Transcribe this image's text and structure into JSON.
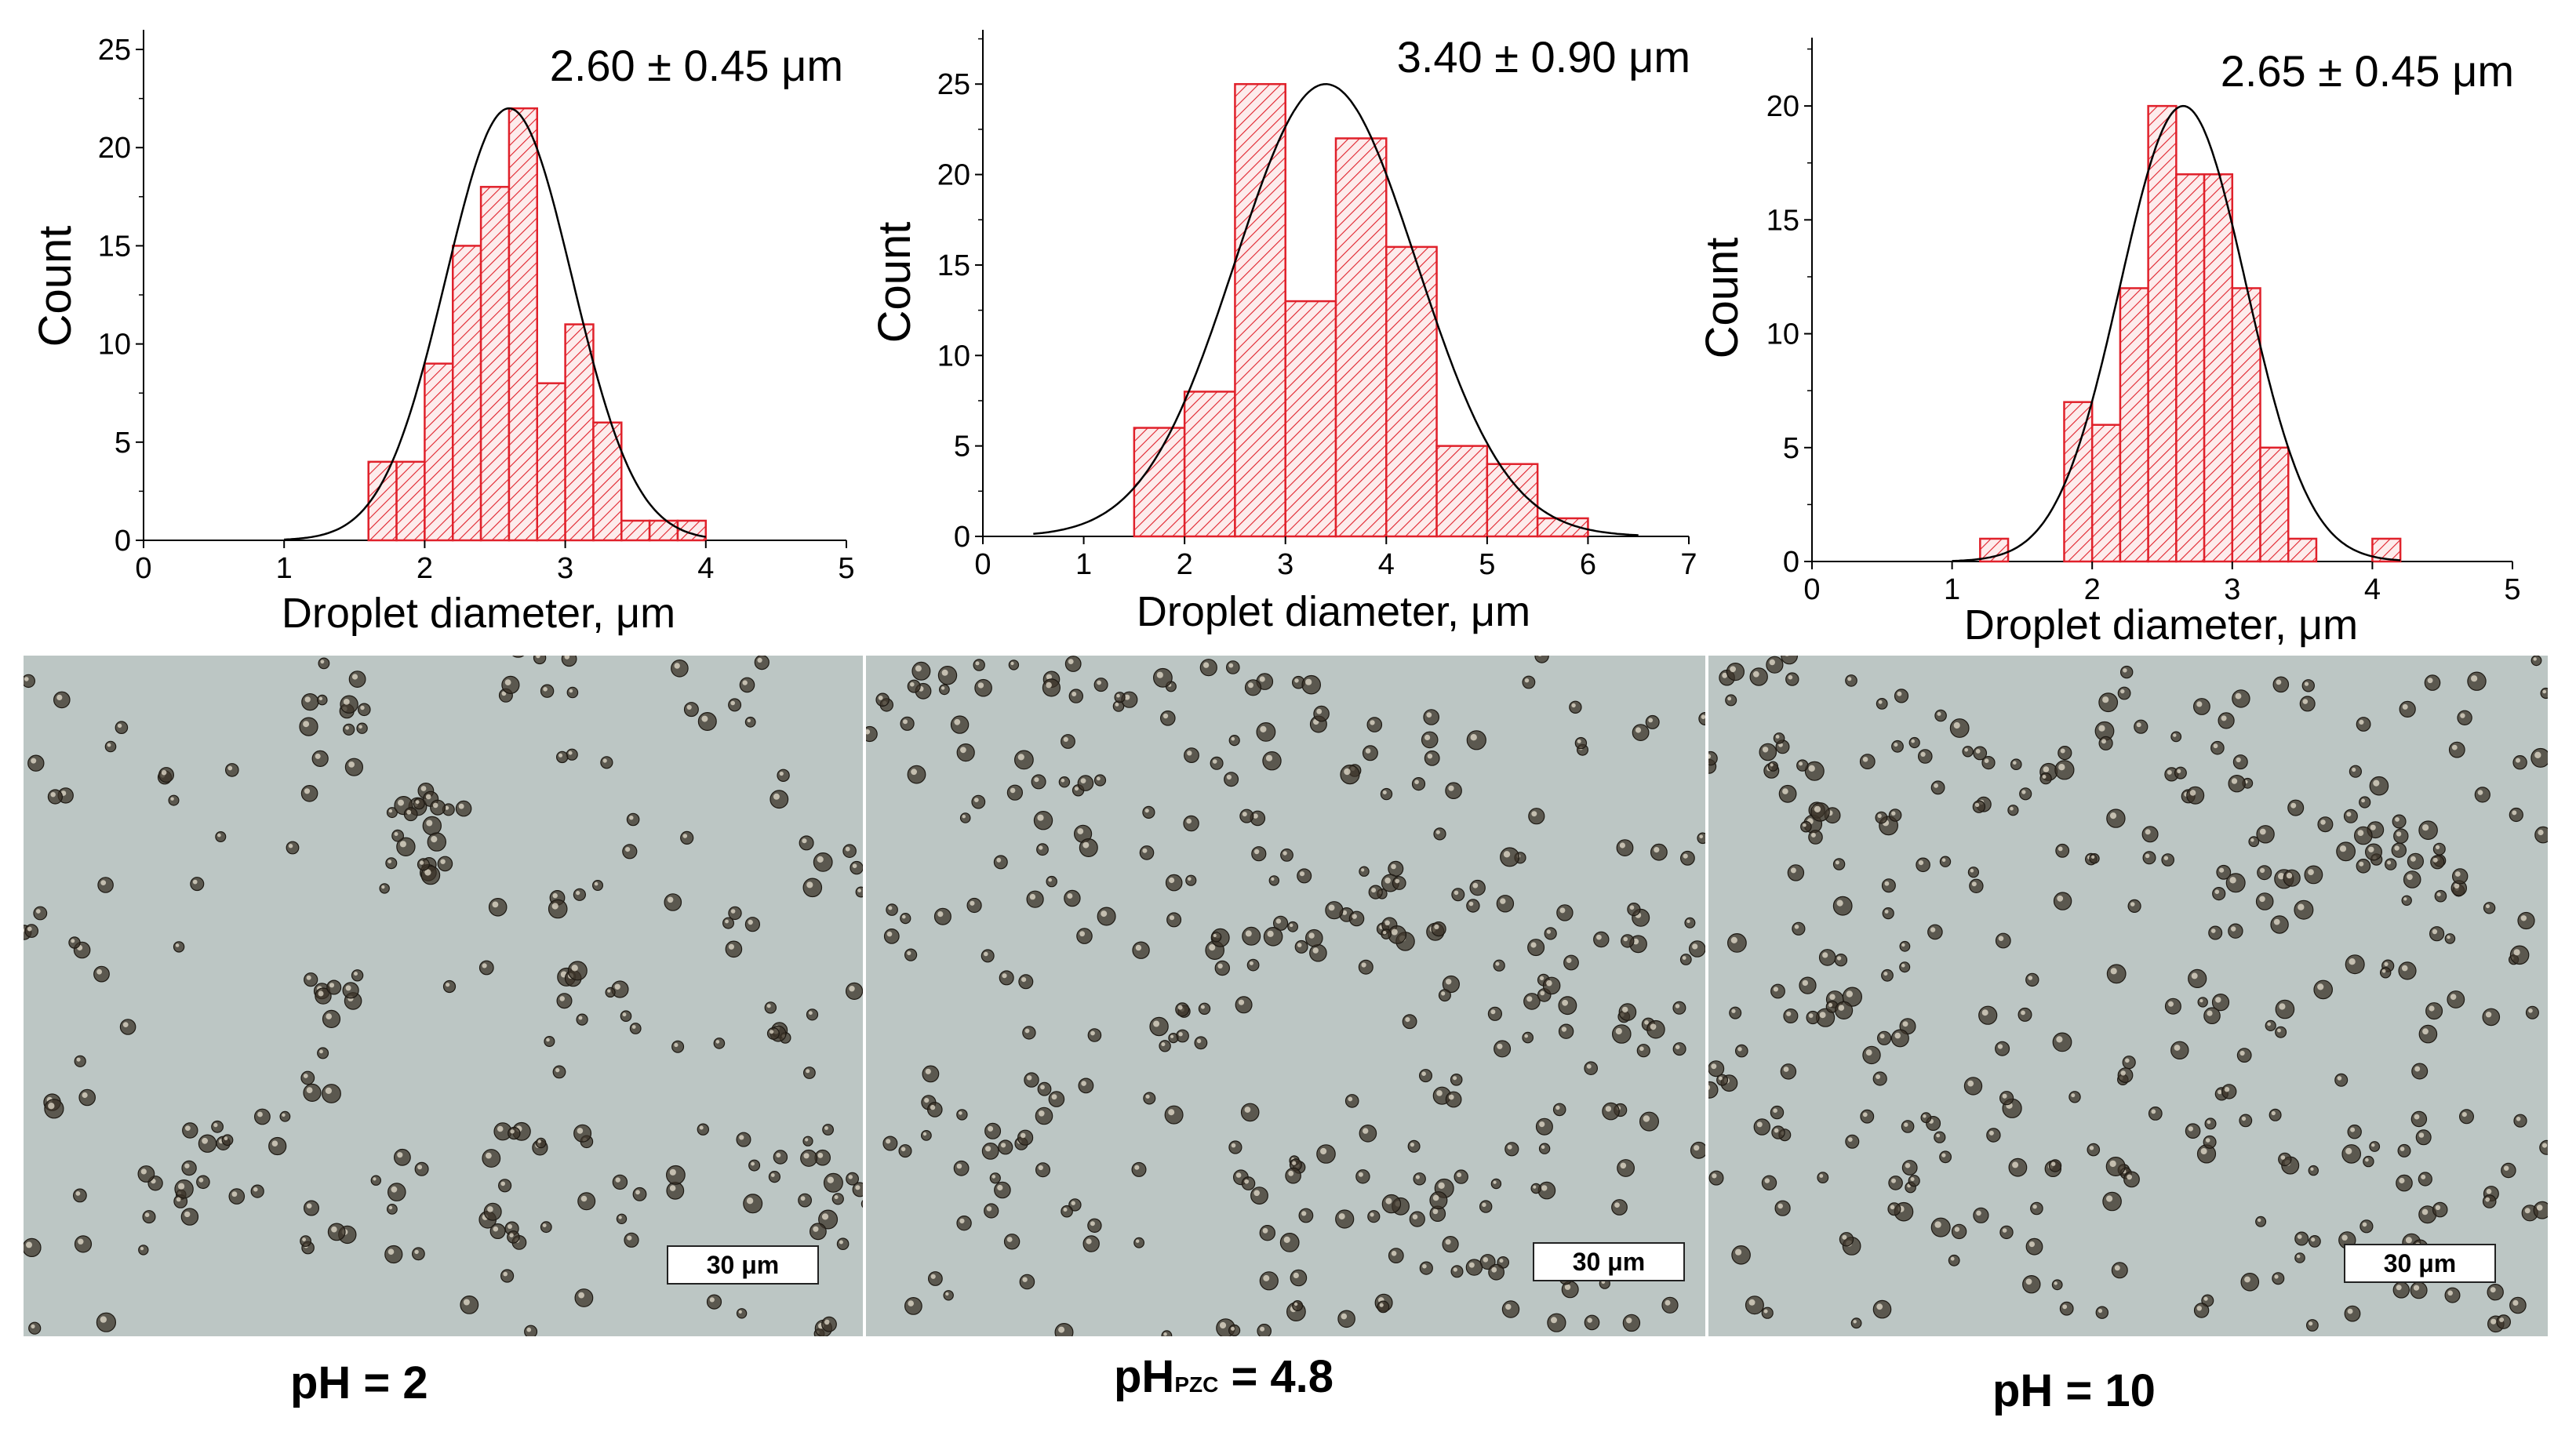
{
  "chart_data": [
    {
      "type": "bar",
      "annotation": "2.60 ± 0.45 μm",
      "xlabel": "Droplet diameter, μm",
      "ylabel": "Count",
      "xlim": [
        0,
        5
      ],
      "ylim": [
        0,
        26
      ],
      "x_ticks": [
        0,
        1,
        2,
        3,
        4,
        5
      ],
      "y_ticks": [
        0,
        5,
        10,
        15,
        20,
        25
      ],
      "bins": [
        {
          "x0": 1.6,
          "x1": 1.8,
          "value": 4
        },
        {
          "x0": 1.8,
          "x1": 2.0,
          "value": 4
        },
        {
          "x0": 2.0,
          "x1": 2.2,
          "value": 9
        },
        {
          "x0": 2.2,
          "x1": 2.4,
          "value": 15
        },
        {
          "x0": 2.4,
          "x1": 2.6,
          "value": 18
        },
        {
          "x0": 2.6,
          "x1": 2.8,
          "value": 22
        },
        {
          "x0": 2.8,
          "x1": 3.0,
          "value": 8
        },
        {
          "x0": 3.0,
          "x1": 3.2,
          "value": 11
        },
        {
          "x0": 3.2,
          "x1": 3.4,
          "value": 6
        },
        {
          "x0": 3.4,
          "x1": 3.6,
          "value": 1
        },
        {
          "x0": 3.6,
          "x1": 3.8,
          "value": 1
        },
        {
          "x0": 3.8,
          "x1": 4.0,
          "value": 1
        }
      ],
      "fit": {
        "mean": 2.6,
        "sd": 0.45,
        "peak": 22,
        "range": [
          1.0,
          4.0
        ]
      }
    },
    {
      "type": "bar",
      "annotation": "3.40 ± 0.90 μm",
      "xlabel": "Droplet diameter, μm",
      "ylabel": "Count",
      "xlim": [
        0,
        7
      ],
      "ylim": [
        0,
        28
      ],
      "x_ticks": [
        0,
        1,
        2,
        3,
        4,
        5,
        6,
        7
      ],
      "y_ticks": [
        0,
        5,
        10,
        15,
        20,
        25
      ],
      "bins": [
        {
          "x0": 1.5,
          "x1": 2.0,
          "value": 6
        },
        {
          "x0": 2.0,
          "x1": 2.5,
          "value": 8
        },
        {
          "x0": 2.5,
          "x1": 3.0,
          "value": 25
        },
        {
          "x0": 3.0,
          "x1": 3.5,
          "value": 13
        },
        {
          "x0": 3.5,
          "x1": 4.0,
          "value": 22
        },
        {
          "x0": 4.0,
          "x1": 4.5,
          "value": 16
        },
        {
          "x0": 4.5,
          "x1": 5.0,
          "value": 5
        },
        {
          "x0": 5.0,
          "x1": 5.5,
          "value": 4
        },
        {
          "x0": 5.5,
          "x1": 6.0,
          "value": 1
        }
      ],
      "fit": {
        "mean": 3.4,
        "sd": 0.9,
        "peak": 25,
        "range": [
          0.5,
          6.5
        ]
      }
    },
    {
      "type": "bar",
      "annotation": "2.65 ± 0.45 μm",
      "xlabel": "Droplet diameter, μm",
      "ylabel": "Count",
      "xlim": [
        0,
        5
      ],
      "ylim": [
        0,
        23
      ],
      "x_ticks": [
        0,
        1,
        2,
        3,
        4,
        5
      ],
      "y_ticks": [
        0,
        5,
        10,
        15,
        20
      ],
      "bins": [
        {
          "x0": 1.2,
          "x1": 1.4,
          "value": 1
        },
        {
          "x0": 1.8,
          "x1": 2.0,
          "value": 7
        },
        {
          "x0": 2.0,
          "x1": 2.2,
          "value": 6
        },
        {
          "x0": 2.2,
          "x1": 2.4,
          "value": 12
        },
        {
          "x0": 2.4,
          "x1": 2.6,
          "value": 20
        },
        {
          "x0": 2.6,
          "x1": 2.8,
          "value": 17
        },
        {
          "x0": 2.8,
          "x1": 3.0,
          "value": 17
        },
        {
          "x0": 3.0,
          "x1": 3.2,
          "value": 12
        },
        {
          "x0": 3.2,
          "x1": 3.4,
          "value": 5
        },
        {
          "x0": 3.4,
          "x1": 3.6,
          "value": 1
        },
        {
          "x0": 4.0,
          "x1": 4.2,
          "value": 1
        }
      ],
      "fit": {
        "mean": 2.65,
        "sd": 0.45,
        "peak": 20,
        "range": [
          1.0,
          4.2
        ]
      }
    }
  ],
  "micrographs": [
    {
      "scale_bar": "30 μm"
    },
    {
      "scale_bar": "30 μm"
    },
    {
      "scale_bar": "30 μm"
    }
  ],
  "panel_labels": [
    {
      "text": "pH = 2"
    },
    {
      "main": "pH",
      "subscript": "PZC",
      "rest": " = 4.8"
    },
    {
      "text": "pH = 10"
    }
  ],
  "colors": {
    "bar_stroke": "#e0212b",
    "bar_fill": "#fbe3e4",
    "fit_line": "#000000",
    "micrograph_bg": "#bcc6c4",
    "droplet": "#3b3328"
  }
}
